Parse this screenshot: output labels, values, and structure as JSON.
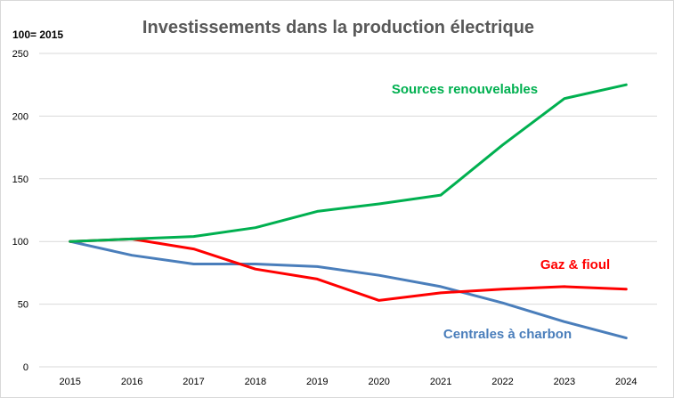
{
  "chart_data": {
    "type": "line",
    "title": "Investissements dans la production électrique",
    "unit_label": "100= 2015",
    "xlabel": "",
    "ylabel": "",
    "categories": [
      "2015",
      "2016",
      "2017",
      "2018",
      "2019",
      "2020",
      "2021",
      "2022",
      "2023",
      "2024"
    ],
    "ylim": [
      0,
      250
    ],
    "yticks": [
      0,
      50,
      100,
      150,
      200,
      250
    ],
    "grid": true,
    "series": [
      {
        "name": "Sources renouvelables",
        "color": "#00b050",
        "values": [
          100,
          102,
          104,
          111,
          124,
          130,
          137,
          177,
          214,
          225
        ]
      },
      {
        "name": "Gaz & fioul",
        "color": "#ff0000",
        "values": [
          100,
          102,
          94,
          78,
          70,
          53,
          59,
          62,
          64,
          62
        ]
      },
      {
        "name": "Centrales à charbon",
        "color": "#4a7ebb",
        "values": [
          100,
          89,
          82,
          82,
          80,
          73,
          64,
          51,
          36,
          23
        ]
      }
    ]
  }
}
